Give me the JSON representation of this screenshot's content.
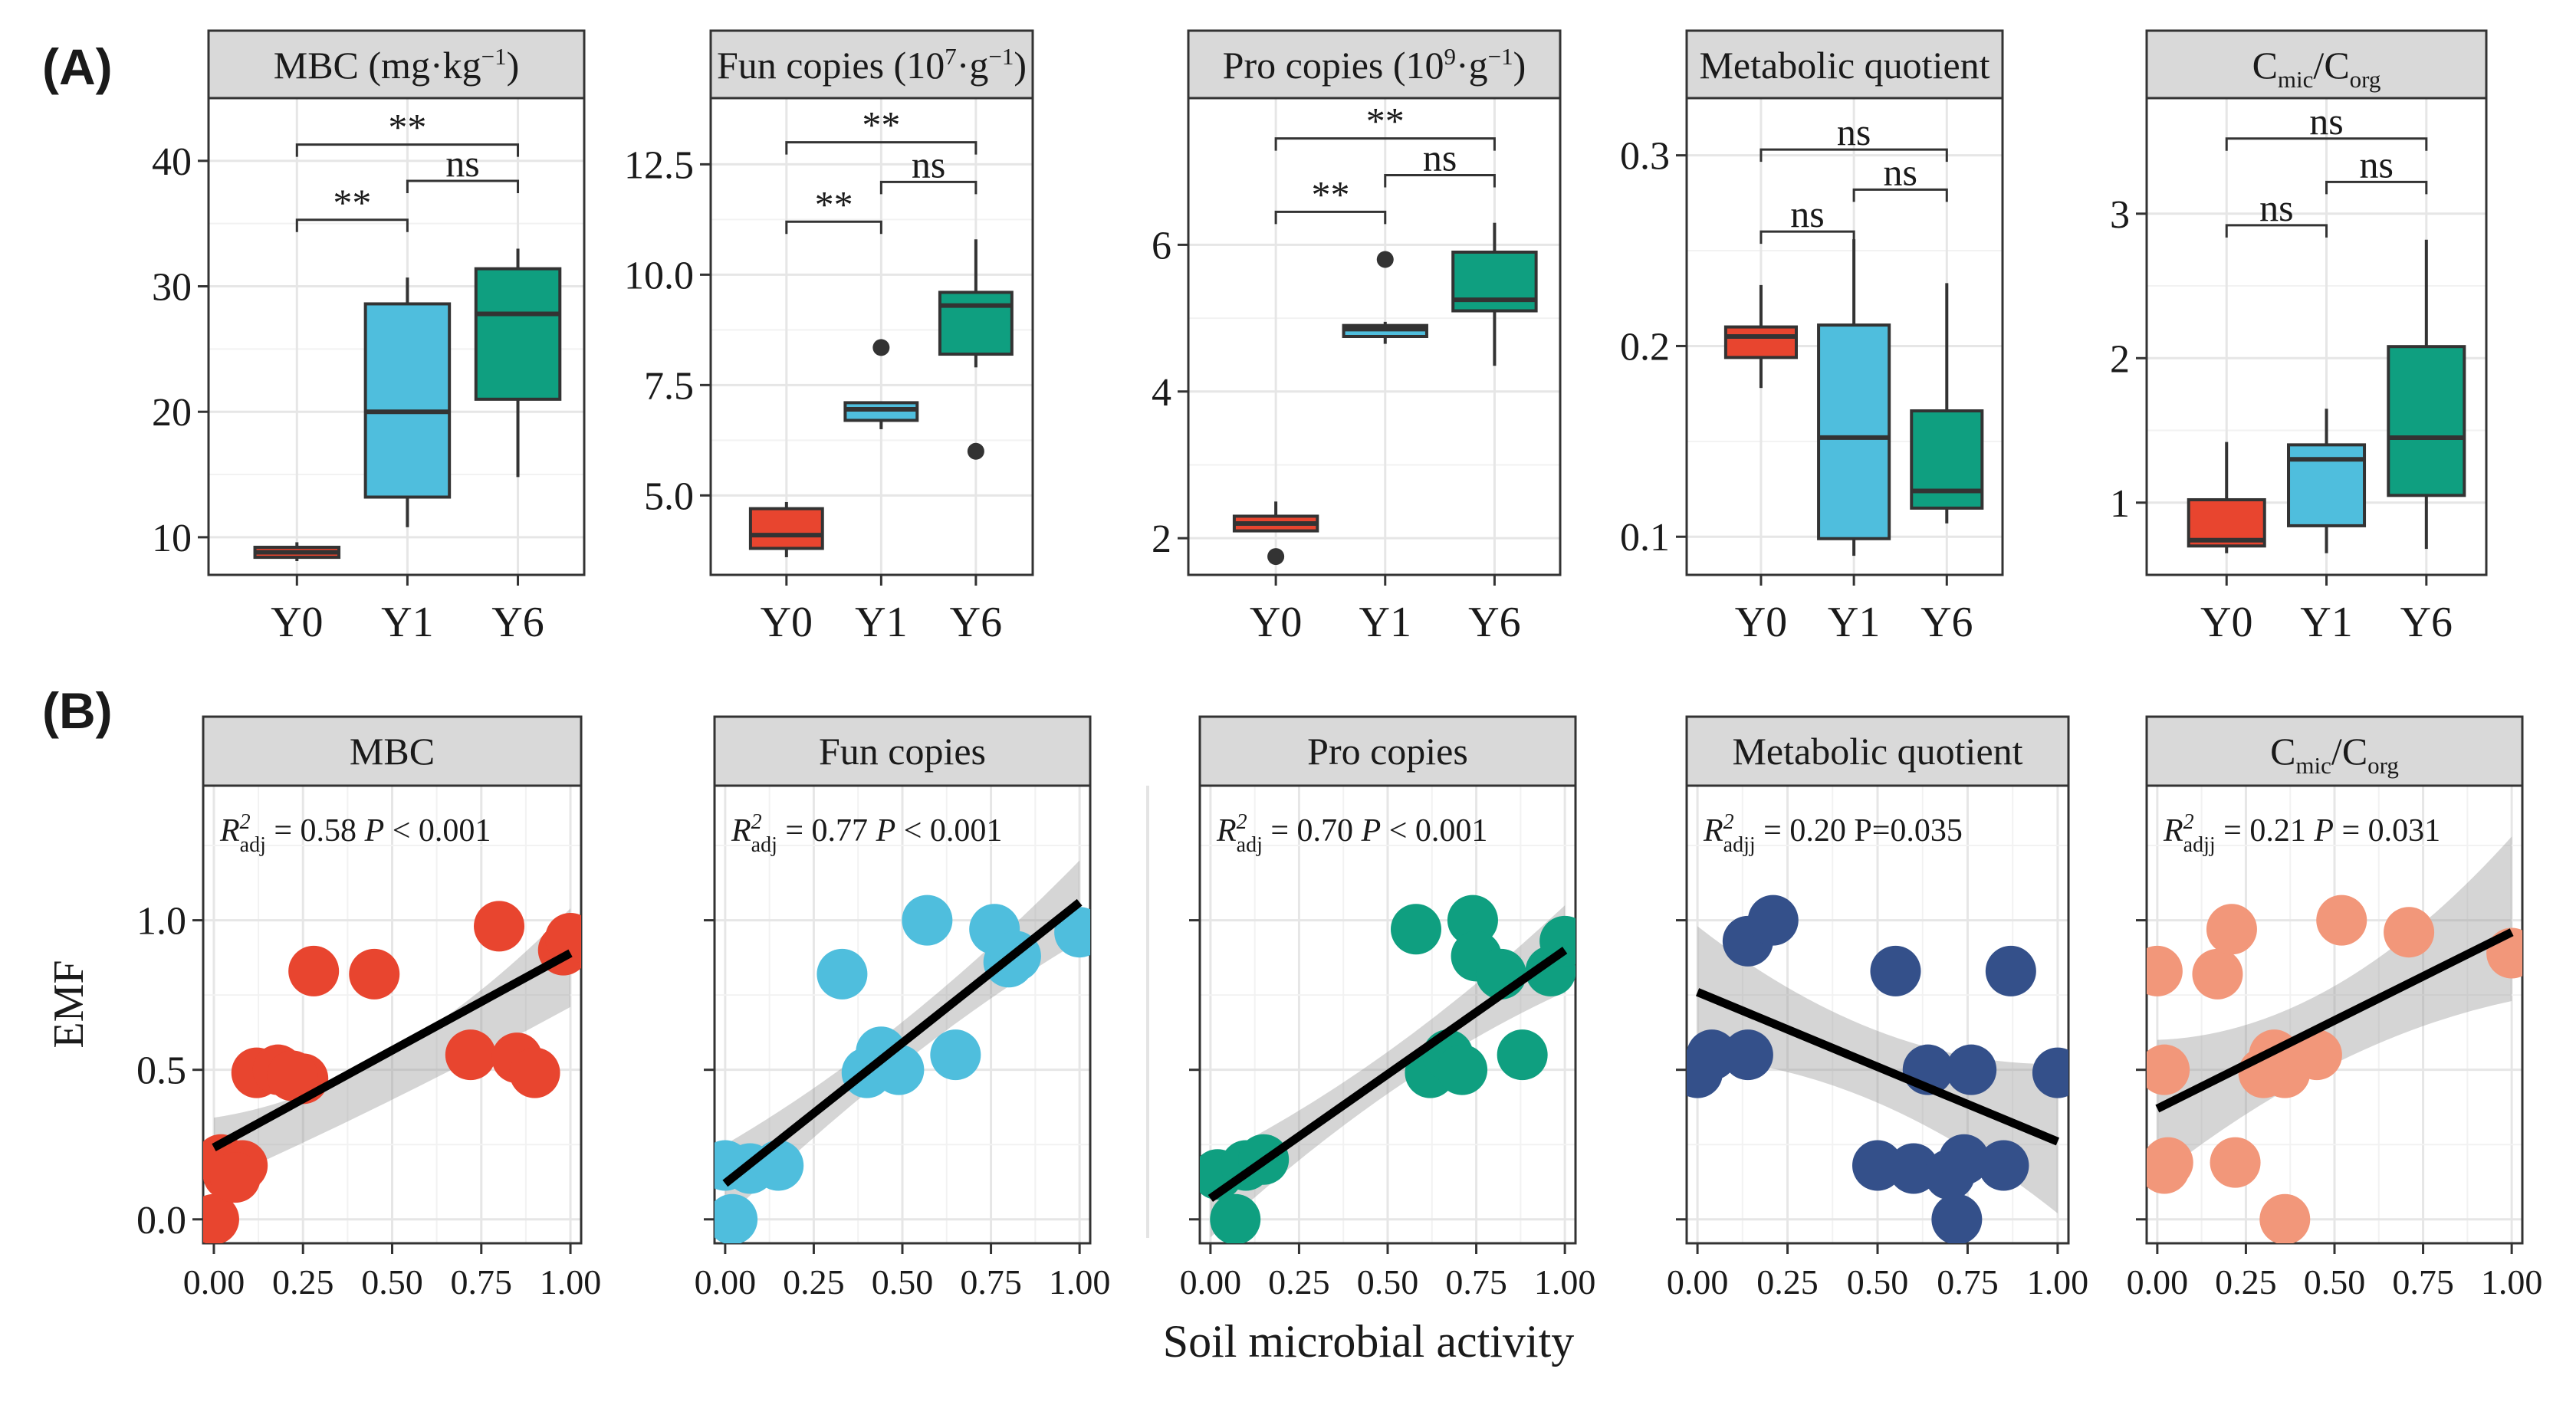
{
  "panel_labels": {
    "a": "(A)",
    "b": "(B)"
  },
  "colors": {
    "Y0": "#e8452f",
    "Y1": "#4fbedd",
    "Y6": "#0f9f80",
    "scatter": [
      "#e8452f",
      "#4fbedd",
      "#0f9f80",
      "#34508a",
      "#f2977a"
    ]
  },
  "shared": {
    "x_label": "Soil microbial activity",
    "y_label": "EMF",
    "categories": [
      "Y0",
      "Y1",
      "Y6"
    ]
  },
  "chart_data": [
    {
      "type": "box",
      "panel": "A",
      "strip": {
        "main": "MBC (mg·kg",
        "sup": "−1",
        "tail": ")"
      },
      "ylim": [
        7,
        45
      ],
      "yticks": [
        10,
        20,
        30,
        40
      ],
      "ytick_labels": [
        "10",
        "20",
        "30",
        "40"
      ],
      "categories": [
        "Y0",
        "Y1",
        "Y6"
      ],
      "boxes": [
        {
          "whisker_low": 8.1,
          "q1": 8.4,
          "median": 8.8,
          "q3": 9.2,
          "whisker_high": 9.6,
          "outliers": []
        },
        {
          "whisker_low": 10.8,
          "q1": 13.2,
          "median": 20.0,
          "q3": 28.6,
          "whisker_high": 30.7,
          "outliers": []
        },
        {
          "whisker_low": 14.8,
          "q1": 21.0,
          "median": 27.8,
          "q3": 31.4,
          "whisker_high": 33.0,
          "outliers": []
        }
      ],
      "brackets": [
        {
          "from": 0,
          "to": 1,
          "y": 35.3,
          "label": "**"
        },
        {
          "from": 1,
          "to": 2,
          "y": 38.4,
          "label": "ns"
        },
        {
          "from": 0,
          "to": 2,
          "y": 41.3,
          "label": "**"
        }
      ]
    },
    {
      "type": "box",
      "panel": "A",
      "strip": {
        "main": "Fun copies (10",
        "sup": "7",
        "tail": "·g",
        "sup2": "−1",
        "tail2": ")"
      },
      "ylim": [
        3.2,
        14
      ],
      "yticks": [
        5.0,
        7.5,
        10.0,
        12.5
      ],
      "ytick_labels": [
        "5.0",
        "7.5",
        "10.0",
        "12.5"
      ],
      "categories": [
        "Y0",
        "Y1",
        "Y6"
      ],
      "boxes": [
        {
          "whisker_low": 3.6,
          "q1": 3.8,
          "median": 4.1,
          "q3": 4.7,
          "whisker_high": 4.85,
          "outliers": []
        },
        {
          "whisker_low": 6.5,
          "q1": 6.7,
          "median": 6.95,
          "q3": 7.1,
          "whisker_high": 7.1,
          "outliers": [
            8.35
          ]
        },
        {
          "whisker_low": 7.9,
          "q1": 8.2,
          "median": 9.3,
          "q3": 9.6,
          "whisker_high": 10.8,
          "outliers": [
            6.0
          ]
        }
      ],
      "brackets": [
        {
          "from": 0,
          "to": 1,
          "y": 11.2,
          "label": "**"
        },
        {
          "from": 1,
          "to": 2,
          "y": 12.1,
          "label": "ns"
        },
        {
          "from": 0,
          "to": 2,
          "y": 13.0,
          "label": "**"
        }
      ]
    },
    {
      "type": "box",
      "panel": "A",
      "strip": {
        "main": "Pro copies  (10",
        "sup": "9",
        "tail": "·g",
        "sup2": "−1",
        "tail2": ")"
      },
      "ylim": [
        1.5,
        8.0
      ],
      "yticks": [
        2,
        4,
        6
      ],
      "ytick_labels": [
        "2",
        "4",
        "6"
      ],
      "categories": [
        "Y0",
        "Y1",
        "Y6"
      ],
      "boxes": [
        {
          "whisker_low": 2.1,
          "q1": 2.1,
          "median": 2.2,
          "q3": 2.3,
          "whisker_high": 2.5,
          "outliers": [
            1.75
          ]
        },
        {
          "whisker_low": 4.65,
          "q1": 4.75,
          "median": 4.85,
          "q3": 4.9,
          "whisker_high": 4.95,
          "outliers": [
            5.8
          ]
        },
        {
          "whisker_low": 4.35,
          "q1": 5.1,
          "median": 5.25,
          "q3": 5.9,
          "whisker_high": 6.3,
          "outliers": []
        }
      ],
      "brackets": [
        {
          "from": 0,
          "to": 1,
          "y": 6.45,
          "label": "**"
        },
        {
          "from": 1,
          "to": 2,
          "y": 6.95,
          "label": "ns"
        },
        {
          "from": 0,
          "to": 2,
          "y": 7.45,
          "label": "**"
        }
      ]
    },
    {
      "type": "box",
      "panel": "A",
      "strip": {
        "main": "Metabolic quotient"
      },
      "ylim": [
        0.08,
        0.33
      ],
      "yticks": [
        0.1,
        0.2,
        0.3
      ],
      "ytick_labels": [
        "0.1",
        "0.2",
        "0.3"
      ],
      "categories": [
        "Y0",
        "Y1",
        "Y6"
      ],
      "boxes": [
        {
          "whisker_low": 0.178,
          "q1": 0.194,
          "median": 0.205,
          "q3": 0.21,
          "whisker_high": 0.232,
          "outliers": []
        },
        {
          "whisker_low": 0.09,
          "q1": 0.099,
          "median": 0.152,
          "q3": 0.211,
          "whisker_high": 0.256,
          "outliers": []
        },
        {
          "whisker_low": 0.107,
          "q1": 0.115,
          "median": 0.124,
          "q3": 0.166,
          "whisker_high": 0.233,
          "outliers": []
        }
      ],
      "brackets": [
        {
          "from": 0,
          "to": 1,
          "y": 0.26,
          "label": "ns"
        },
        {
          "from": 1,
          "to": 2,
          "y": 0.282,
          "label": "ns"
        },
        {
          "from": 0,
          "to": 2,
          "y": 0.303,
          "label": "ns"
        }
      ]
    },
    {
      "type": "box",
      "panel": "A",
      "strip": {
        "main": "C",
        "sub": "mic",
        "tail": "/C",
        "sub2": "org"
      },
      "ylim": [
        0.5,
        3.8
      ],
      "yticks": [
        1,
        2,
        3
      ],
      "ytick_labels": [
        "1",
        "2",
        "3"
      ],
      "categories": [
        "Y0",
        "Y1",
        "Y6"
      ],
      "boxes": [
        {
          "whisker_low": 0.65,
          "q1": 0.7,
          "median": 0.74,
          "q3": 1.02,
          "whisker_high": 1.42,
          "outliers": []
        },
        {
          "whisker_low": 0.65,
          "q1": 0.84,
          "median": 1.3,
          "q3": 1.4,
          "whisker_high": 1.65,
          "outliers": []
        },
        {
          "whisker_low": 0.68,
          "q1": 1.05,
          "median": 1.45,
          "q3": 2.08,
          "whisker_high": 2.82,
          "outliers": []
        }
      ],
      "brackets": [
        {
          "from": 0,
          "to": 1,
          "y": 2.92,
          "label": "ns"
        },
        {
          "from": 1,
          "to": 2,
          "y": 3.22,
          "label": "ns"
        },
        {
          "from": 0,
          "to": 2,
          "y": 3.52,
          "label": "ns"
        }
      ]
    },
    {
      "type": "scatter",
      "panel": "B",
      "strip": {
        "main": "MBC"
      },
      "stat": {
        "r2": "R",
        "r2_sup": "2",
        "r2_sub": "adj",
        "value": " = 0.58 ",
        "p_italic": "P",
        "p_text": " < 0.001"
      },
      "xlim": [
        -0.03,
        1.03
      ],
      "ylim": [
        -0.08,
        1.45
      ],
      "xticks": [
        0,
        0.25,
        0.5,
        0.75,
        1.0
      ],
      "xtick_labels": [
        "0.00",
        "0.25",
        "0.50",
        "0.75",
        "1.00"
      ],
      "yticks": [
        0,
        0.5,
        1.0
      ],
      "ytick_labels": [
        "0.0",
        "0.5",
        "1.0"
      ],
      "x": [
        0.0,
        0.04,
        0.08,
        0.02,
        0.12,
        0.18,
        0.25,
        0.28,
        0.45,
        0.72,
        0.8,
        0.85,
        0.9,
        0.98,
        1.0,
        0.22,
        0.06
      ],
      "y": [
        0.0,
        0.15,
        0.18,
        0.2,
        0.49,
        0.5,
        0.47,
        0.83,
        0.82,
        0.55,
        0.98,
        0.54,
        0.49,
        0.9,
        0.94,
        0.48,
        0.14
      ],
      "fit": {
        "x0": 0.0,
        "y0": 0.24,
        "x1": 1.0,
        "y1": 0.89
      },
      "band": {
        "lo": [
          0.12,
          0.4,
          0.71
        ],
        "hi": [
          0.34,
          0.56,
          1.04
        ]
      }
    },
    {
      "type": "scatter",
      "panel": "B",
      "strip": {
        "main": "Fun copies"
      },
      "stat": {
        "r2": "R",
        "r2_sup": "2",
        "r2_sub": "adj",
        "value": " = 0.77 ",
        "p_italic": "P",
        "p_text": " < 0.001"
      },
      "xlim": [
        -0.03,
        1.03
      ],
      "ylim": [
        -0.08,
        1.45
      ],
      "xticks": [
        0,
        0.25,
        0.5,
        0.75,
        1.0
      ],
      "xtick_labels": [
        "0.00",
        "0.25",
        "0.50",
        "0.75",
        "1.00"
      ],
      "yticks": [
        0,
        0.5,
        1.0
      ],
      "ytick_labels": [
        "",
        "",
        ""
      ],
      "x": [
        0.0,
        0.02,
        0.07,
        0.15,
        0.33,
        0.4,
        0.44,
        0.49,
        0.57,
        0.65,
        0.76,
        0.8,
        0.82,
        1.0
      ],
      "y": [
        0.18,
        0.0,
        0.17,
        0.18,
        0.82,
        0.49,
        0.56,
        0.5,
        1.0,
        0.55,
        0.97,
        0.86,
        0.88,
        0.96
      ],
      "fit": {
        "x0": 0.0,
        "y0": 0.12,
        "x1": 1.0,
        "y1": 1.06
      },
      "band": {
        "lo": [
          0.0,
          0.52,
          0.93
        ],
        "hi": [
          0.25,
          0.66,
          1.2
        ]
      }
    },
    {
      "type": "scatter",
      "panel": "B",
      "strip": {
        "main": "Pro copies"
      },
      "stat": {
        "r2": "R",
        "r2_sup": "2",
        "r2_sub": "adj",
        "value": " = 0.70 ",
        "p_italic": "P",
        "p_text": " < 0.001"
      },
      "xlim": [
        -0.03,
        1.03
      ],
      "ylim": [
        -0.08,
        1.45
      ],
      "xticks": [
        0,
        0.25,
        0.5,
        0.75,
        1.0
      ],
      "xtick_labels": [
        "0.00",
        "0.25",
        "0.50",
        "0.75",
        "1.00"
      ],
      "yticks": [
        0,
        0.5,
        1.0
      ],
      "ytick_labels": [
        "",
        "",
        ""
      ],
      "x": [
        0.02,
        0.07,
        0.1,
        0.15,
        0.58,
        0.62,
        0.67,
        0.71,
        0.74,
        0.75,
        0.82,
        0.88,
        0.96,
        1.0
      ],
      "y": [
        0.15,
        0.0,
        0.18,
        0.2,
        0.97,
        0.49,
        0.55,
        0.5,
        1.0,
        0.88,
        0.82,
        0.55,
        0.83,
        0.93
      ],
      "fit": {
        "x0": 0.0,
        "y0": 0.07,
        "x1": 1.0,
        "y1": 0.9
      },
      "band": {
        "lo": [
          -0.06,
          0.42,
          0.76
        ],
        "hi": [
          0.2,
          0.56,
          1.05
        ]
      }
    },
    {
      "type": "scatter",
      "panel": "B",
      "strip": {
        "main": "Metabolic quotient"
      },
      "stat": {
        "r2": "R",
        "r2_sup": "2",
        "r2_sub": "adjj",
        "value": " = 0.20 P=0.035",
        "p_italic": "",
        "p_text": ""
      },
      "xlim": [
        -0.03,
        1.03
      ],
      "ylim": [
        -0.08,
        1.45
      ],
      "xticks": [
        0,
        0.25,
        0.5,
        0.75,
        1.0
      ],
      "xtick_labels": [
        "0.00",
        "0.25",
        "0.50",
        "0.75",
        "1.00"
      ],
      "yticks": [
        0,
        0.5,
        1.0
      ],
      "ytick_labels": [
        "",
        "",
        ""
      ],
      "x": [
        0.0,
        0.04,
        0.14,
        0.14,
        0.21,
        0.5,
        0.55,
        0.6,
        0.64,
        0.7,
        0.72,
        0.74,
        0.76,
        0.85,
        0.87,
        1.0
      ],
      "y": [
        0.49,
        0.55,
        0.93,
        0.55,
        1.0,
        0.18,
        0.83,
        0.17,
        0.5,
        0.15,
        0.0,
        0.2,
        0.5,
        0.18,
        0.83,
        0.49
      ],
      "fit": {
        "x0": 0.0,
        "y0": 0.76,
        "x1": 1.0,
        "y1": 0.26
      },
      "band": {
        "lo": [
          0.54,
          0.39,
          0.02
        ],
        "hi": [
          0.98,
          0.63,
          0.52
        ]
      }
    },
    {
      "type": "scatter",
      "panel": "B",
      "strip": {
        "main": "C",
        "sub": "mic",
        "tail": "/C",
        "sub2": "org"
      },
      "stat": {
        "r2": "R",
        "r2_sup": "2",
        "r2_sub": "adjj",
        "value": " = 0.21 ",
        "p_italic": "P",
        "p_text": " = 0.031"
      },
      "xlim": [
        -0.03,
        1.03
      ],
      "ylim": [
        -0.08,
        1.45
      ],
      "xticks": [
        0,
        0.25,
        0.5,
        0.75,
        1.0
      ],
      "xtick_labels": [
        "0.00",
        "0.25",
        "0.50",
        "0.75",
        "1.00"
      ],
      "yticks": [
        0,
        0.5,
        1.0
      ],
      "ytick_labels": [
        "",
        "",
        ""
      ],
      "x": [
        0.0,
        0.02,
        0.02,
        0.03,
        0.17,
        0.21,
        0.22,
        0.3,
        0.33,
        0.36,
        0.36,
        0.45,
        0.52,
        0.71,
        1.0
      ],
      "y": [
        0.83,
        0.5,
        0.17,
        0.19,
        0.82,
        0.97,
        0.19,
        0.49,
        0.55,
        0.49,
        0.0,
        0.55,
        1.0,
        0.96,
        0.89
      ],
      "fit": {
        "x0": 0.0,
        "y0": 0.37,
        "x1": 1.0,
        "y1": 0.96
      },
      "band": {
        "lo": [
          0.14,
          0.52,
          0.73
        ],
        "hi": [
          0.6,
          0.78,
          1.28
        ]
      }
    }
  ]
}
